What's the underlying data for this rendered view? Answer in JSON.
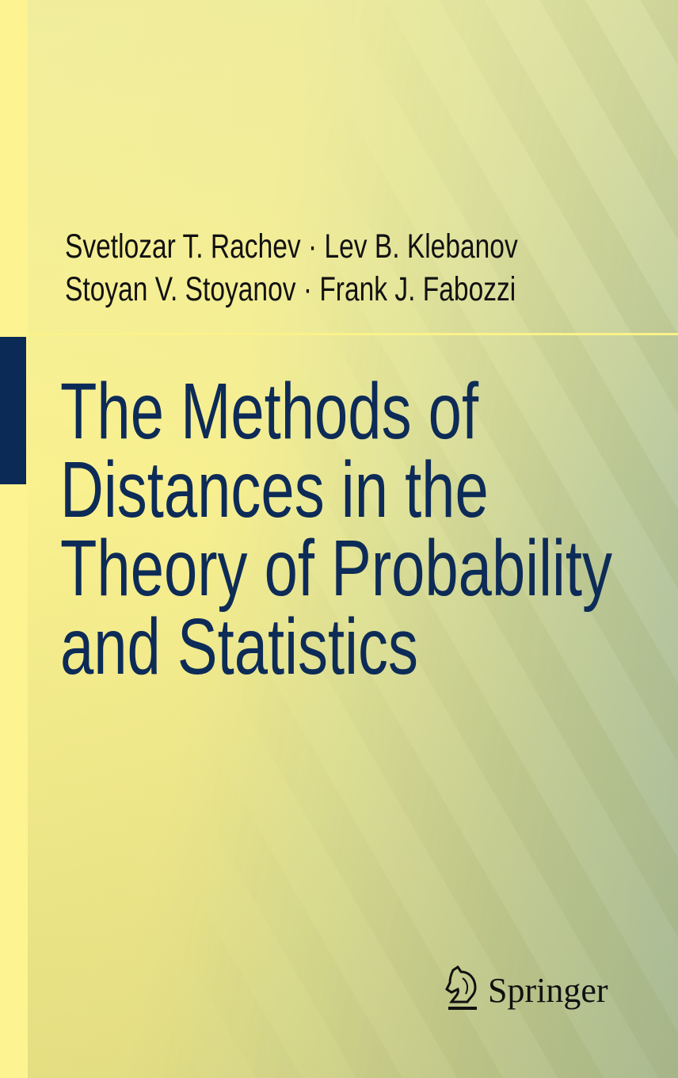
{
  "cover": {
    "authors": [
      "Svetlozar T. Rachev · Lev B. Klebanov",
      "Stoyan V. Stoyanov · Frank J. Fabozzi"
    ],
    "title_lines": [
      "The Methods of",
      "Distances in the",
      "Theory of Probability",
      "and Statistics"
    ],
    "publisher": "Springer",
    "publisher_logo_icon": "knight-chess-piece-icon",
    "colors": {
      "title": "#0d2b57",
      "accent_block": "#0b2a55",
      "spine": "#fdf390"
    }
  }
}
